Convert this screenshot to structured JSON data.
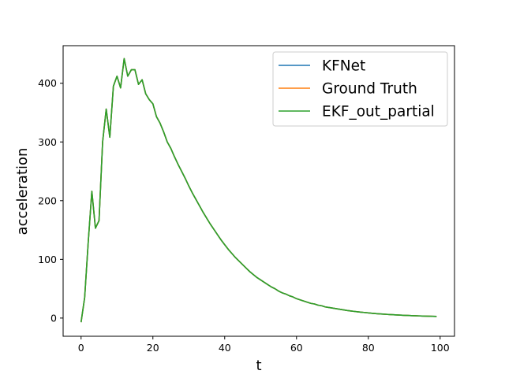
{
  "chart_data": {
    "type": "line",
    "xlabel": "t",
    "ylabel": "acceleration",
    "xlim": [
      -5,
      104
    ],
    "ylim": [
      -31,
      464
    ],
    "xticks": [
      0,
      20,
      40,
      60,
      80,
      100
    ],
    "yticks": [
      0,
      100,
      200,
      300,
      400
    ],
    "grid": false,
    "legend_position": "upper right",
    "x": [
      0,
      1,
      2,
      3,
      4,
      5,
      6,
      7,
      8,
      9,
      10,
      11,
      12,
      13,
      14,
      15,
      16,
      17,
      18,
      19,
      20,
      21,
      22,
      23,
      24,
      25,
      26,
      27,
      28,
      29,
      30,
      31,
      32,
      33,
      34,
      35,
      36,
      37,
      38,
      39,
      40,
      41,
      42,
      43,
      44,
      45,
      46,
      47,
      48,
      49,
      50,
      51,
      52,
      53,
      54,
      55,
      56,
      57,
      58,
      59,
      60,
      61,
      62,
      63,
      64,
      65,
      66,
      67,
      68,
      69,
      70,
      71,
      72,
      73,
      74,
      75,
      76,
      77,
      78,
      79,
      80,
      81,
      82,
      83,
      84,
      85,
      86,
      87,
      88,
      89,
      90,
      91,
      92,
      93,
      94,
      95,
      96,
      97,
      98,
      99
    ],
    "series": [
      {
        "name": "KFNet",
        "color": "#1f77b4",
        "values": [
          -7,
          35,
          130,
          216,
          153,
          166,
          300,
          356,
          308,
          395,
          412,
          392,
          442,
          412,
          423,
          423,
          398,
          406,
          382,
          372,
          365,
          343,
          332,
          317,
          300,
          289,
          275,
          262,
          250,
          238,
          225,
          213,
          202,
          191,
          180,
          170,
          160,
          151,
          142,
          133,
          125,
          117,
          110,
          103,
          97,
          91,
          85,
          79,
          74,
          69,
          65,
          61,
          57,
          53,
          50,
          46,
          43,
          41,
          38,
          36,
          33,
          31,
          29,
          27,
          25,
          24,
          22,
          21,
          19,
          18,
          17,
          16,
          15,
          14,
          13,
          12.2,
          11.4,
          10.7,
          10,
          9.4,
          8.8,
          8.2,
          7.7,
          7.2,
          6.8,
          6.4,
          6,
          5.6,
          5.3,
          5,
          4.7,
          4.4,
          4.1,
          3.9,
          3.7,
          3.5,
          3.3,
          3.1,
          2.9,
          2.8
        ]
      },
      {
        "name": "Ground Truth",
        "color": "#ff7f0e",
        "values": [
          -7,
          35,
          130,
          216,
          153,
          166,
          300,
          356,
          308,
          395,
          412,
          392,
          442,
          412,
          423,
          423,
          398,
          406,
          382,
          372,
          365,
          343,
          332,
          317,
          300,
          289,
          275,
          262,
          250,
          238,
          225,
          213,
          202,
          191,
          180,
          170,
          160,
          151,
          142,
          133,
          125,
          117,
          110,
          103,
          97,
          91,
          85,
          79,
          74,
          69,
          65,
          61,
          57,
          53,
          50,
          46,
          43,
          41,
          38,
          36,
          33,
          31,
          29,
          27,
          25,
          24,
          22,
          21,
          19,
          18,
          17,
          16,
          15,
          14,
          13,
          12.2,
          11.4,
          10.7,
          10,
          9.4,
          8.8,
          8.2,
          7.7,
          7.2,
          6.8,
          6.4,
          6,
          5.6,
          5.3,
          5,
          4.7,
          4.4,
          4.1,
          3.9,
          3.7,
          3.5,
          3.3,
          3.1,
          2.9,
          2.8
        ]
      },
      {
        "name": "EKF_out_partial",
        "color": "#2ca02c",
        "values": [
          -7,
          35,
          130,
          216,
          153,
          166,
          300,
          356,
          308,
          395,
          412,
          392,
          442,
          412,
          423,
          423,
          398,
          406,
          382,
          372,
          365,
          343,
          332,
          317,
          300,
          289,
          275,
          262,
          250,
          238,
          225,
          213,
          202,
          191,
          180,
          170,
          160,
          151,
          142,
          133,
          125,
          117,
          110,
          103,
          97,
          91,
          85,
          79,
          74,
          69,
          65,
          61,
          57,
          53,
          50,
          46,
          43,
          41,
          38,
          36,
          33,
          31,
          29,
          27,
          25,
          24,
          22,
          21,
          19,
          18,
          17,
          16,
          15,
          14,
          13,
          12.2,
          11.4,
          10.7,
          10,
          9.4,
          8.8,
          8.2,
          7.7,
          7.2,
          6.8,
          6.4,
          6,
          5.6,
          5.3,
          5,
          4.7,
          4.4,
          4.1,
          3.9,
          3.7,
          3.5,
          3.3,
          3.1,
          2.9,
          2.8
        ]
      }
    ]
  }
}
